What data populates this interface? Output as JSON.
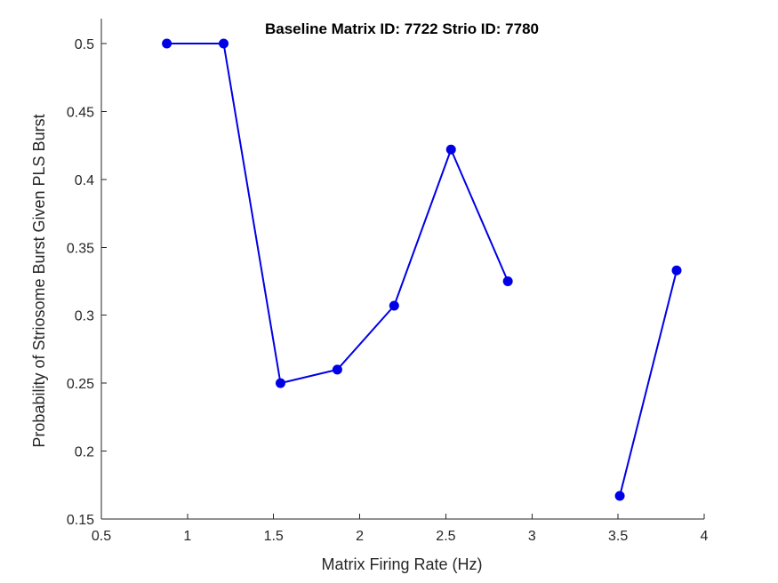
{
  "chart_data": {
    "type": "line",
    "title": "Baseline Matrix ID: 7722 Strio ID: 7780",
    "xlabel": "Matrix Firing Rate (Hz)",
    "ylabel": "Probability of Striosome Burst Given PLS Burst",
    "xlim": [
      0.5,
      4
    ],
    "ylim": [
      0.15,
      0.5
    ],
    "xticks": [
      0.5,
      1,
      1.5,
      2,
      2.5,
      3,
      3.5,
      4
    ],
    "xtick_labels": [
      "0.5",
      "1",
      "1.5",
      "2",
      "2.5",
      "3",
      "3.5",
      "4"
    ],
    "yticks": [
      0.15,
      0.2,
      0.25,
      0.3,
      0.35,
      0.4,
      0.45,
      0.5
    ],
    "ytick_labels": [
      "0.15",
      "0.2",
      "0.25",
      "0.3",
      "0.35",
      "0.4",
      "0.45",
      "0.5"
    ],
    "grid": false,
    "series": [
      {
        "color": "#0000e6",
        "segments": [
          [
            {
              "x": 0.88,
              "y": 0.5
            },
            {
              "x": 1.21,
              "y": 0.5
            },
            {
              "x": 1.54,
              "y": 0.25
            },
            {
              "x": 1.87,
              "y": 0.26
            },
            {
              "x": 2.2,
              "y": 0.307
            },
            {
              "x": 2.53,
              "y": 0.422
            },
            {
              "x": 2.86,
              "y": 0.325
            }
          ],
          [
            {
              "x": 3.51,
              "y": 0.167
            },
            {
              "x": 3.84,
              "y": 0.333
            }
          ]
        ]
      }
    ]
  }
}
